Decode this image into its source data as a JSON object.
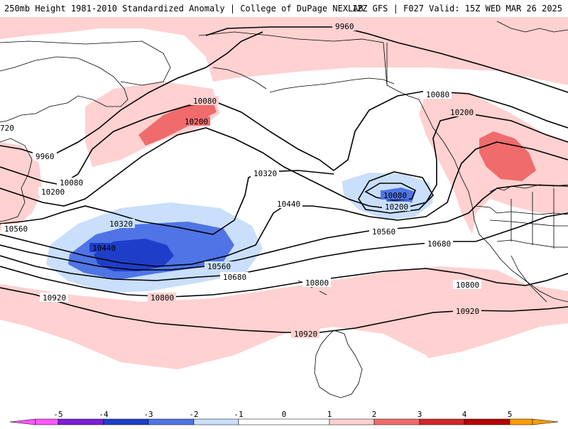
{
  "header": {
    "left": "250mb Height 1981-2010 Standardized Anomaly | College of DuPage NEXLAB",
    "right": "12Z GFS | F027 Valid: 15Z WED MAR 26 2025"
  },
  "colors": {
    "anom_neg5": "#ff55ff",
    "anom_neg4": "#7a1fd6",
    "anom_neg3": "#1e3ec9",
    "anom_neg2": "#4f74e6",
    "anom_neg1": "#c9dffb",
    "anom_0": "#ffffff",
    "anom_pos1": "#ffd1d1",
    "anom_pos2": "#f06b6b",
    "anom_pos3": "#d2262b",
    "anom_pos4": "#b80000",
    "anom_pos5": "#ff9d00"
  },
  "contour_labels": [
    {
      "text": "9960"
    },
    {
      "text": "10080"
    },
    {
      "text": "10200"
    },
    {
      "text": "720"
    },
    {
      "text": "9960"
    },
    {
      "text": "10080"
    },
    {
      "text": "10200"
    },
    {
      "text": "10560"
    },
    {
      "text": "10320"
    },
    {
      "text": "10440"
    },
    {
      "text": "10320"
    },
    {
      "text": "10440"
    },
    {
      "text": "10560"
    },
    {
      "text": "10680"
    },
    {
      "text": "10800"
    },
    {
      "text": "10920"
    },
    {
      "text": "10080"
    },
    {
      "text": "10200"
    },
    {
      "text": "10080"
    },
    {
      "text": "10200"
    },
    {
      "text": "10560"
    },
    {
      "text": "10680"
    },
    {
      "text": "10800"
    },
    {
      "text": "10800"
    },
    {
      "text": "10920"
    },
    {
      "text": "10920"
    }
  ],
  "legend": {
    "ticks": [
      "-5",
      "-4",
      "-3",
      "-2",
      "-1",
      "0",
      "1",
      "2",
      "3",
      "4",
      "5"
    ]
  }
}
